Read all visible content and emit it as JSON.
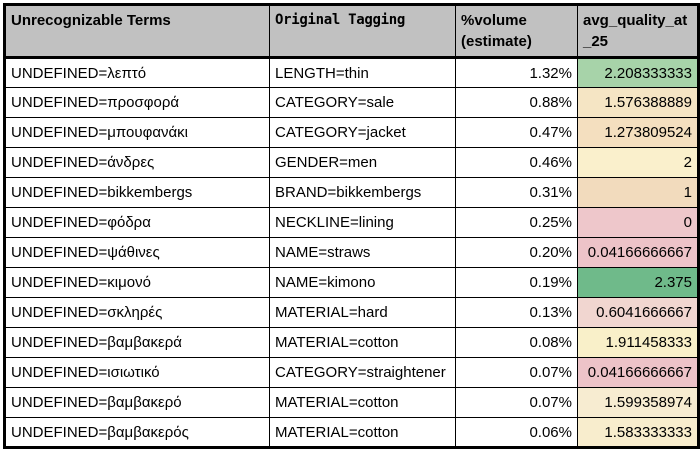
{
  "header": {
    "term_label": "Unrecognizable Terms",
    "tag_label": "Original Tagging",
    "volume_label": "%volume\n(estimate)",
    "quality_label": "avg_quality_at\n_25",
    "bg": "#c1c1c1"
  },
  "colors": {
    "border": "#000000",
    "quality_high": "#6fba8a",
    "quality_mid": "#faf0cc",
    "quality_low": "#eec7cb"
  },
  "chart_data": {
    "type": "table",
    "title": "Unrecognizable terms vs original tagging with volume and quality",
    "columns": [
      "Unrecognizable Terms",
      "Original Tagging",
      "%volume (estimate)",
      "avg_quality_at_25"
    ],
    "rows": [
      {
        "term": "UNDEFINED=λεπτό",
        "tag": "LENGTH=thin",
        "volume": "1.32%",
        "quality": "2.208333333",
        "quality_bg": "#a7d3a9"
      },
      {
        "term": "UNDEFINED=προσφορά",
        "tag": "CATEGORY=sale",
        "volume": "0.88%",
        "quality": "1.576388889",
        "quality_bg": "#f5e5c4"
      },
      {
        "term": "UNDEFINED=μπουφανάκι",
        "tag": "CATEGORY=jacket",
        "volume": "0.47%",
        "quality": "1.273809524",
        "quality_bg": "#f4dfbf"
      },
      {
        "term": "UNDEFINED=άνδρες",
        "tag": "GENDER=men",
        "volume": "0.46%",
        "quality": "2",
        "quality_bg": "#faf0cc"
      },
      {
        "term": "UNDEFINED=bikkembergs",
        "tag": "BRAND=bikkembergs",
        "volume": "0.31%",
        "quality": "1",
        "quality_bg": "#f2dbbd"
      },
      {
        "term": "UNDEFINED=φόδρα",
        "tag": "NECKLINE=lining",
        "volume": "0.25%",
        "quality": "0",
        "quality_bg": "#eec7cb"
      },
      {
        "term": "UNDEFINED=ψάθινες",
        "tag": "NAME=straws",
        "volume": "0.20%",
        "quality": "0.04166666667",
        "quality_bg": "#edc3c8"
      },
      {
        "term": "UNDEFINED=κιμονό",
        "tag": "NAME=kimono",
        "volume": "0.19%",
        "quality": "2.375",
        "quality_bg": "#6fba8a"
      },
      {
        "term": "UNDEFINED=σκληρές",
        "tag": "MATERIAL=hard",
        "volume": "0.13%",
        "quality": "0.6041666667",
        "quality_bg": "#f1d6d0"
      },
      {
        "term": "UNDEFINED=βαμβακερά",
        "tag": "MATERIAL=cotton",
        "volume": "0.08%",
        "quality": "1.911458333",
        "quality_bg": "#f9f0c9"
      },
      {
        "term": "UNDEFINED=ισιωτικό",
        "tag": "CATEGORY=straightener",
        "volume": "0.07%",
        "quality": "0.04166666667",
        "quality_bg": "#edc3c8"
      },
      {
        "term": "UNDEFINED=βαμβακερό",
        "tag": "MATERIAL=cotton",
        "volume": "0.07%",
        "quality": "1.599358974",
        "quality_bg": "#f7ecd1"
      },
      {
        "term": "UNDEFINED=βαμβακερός",
        "tag": "MATERIAL=cotton",
        "volume": "0.06%",
        "quality": "1.583333333",
        "quality_bg": "#f8edcd"
      }
    ]
  }
}
